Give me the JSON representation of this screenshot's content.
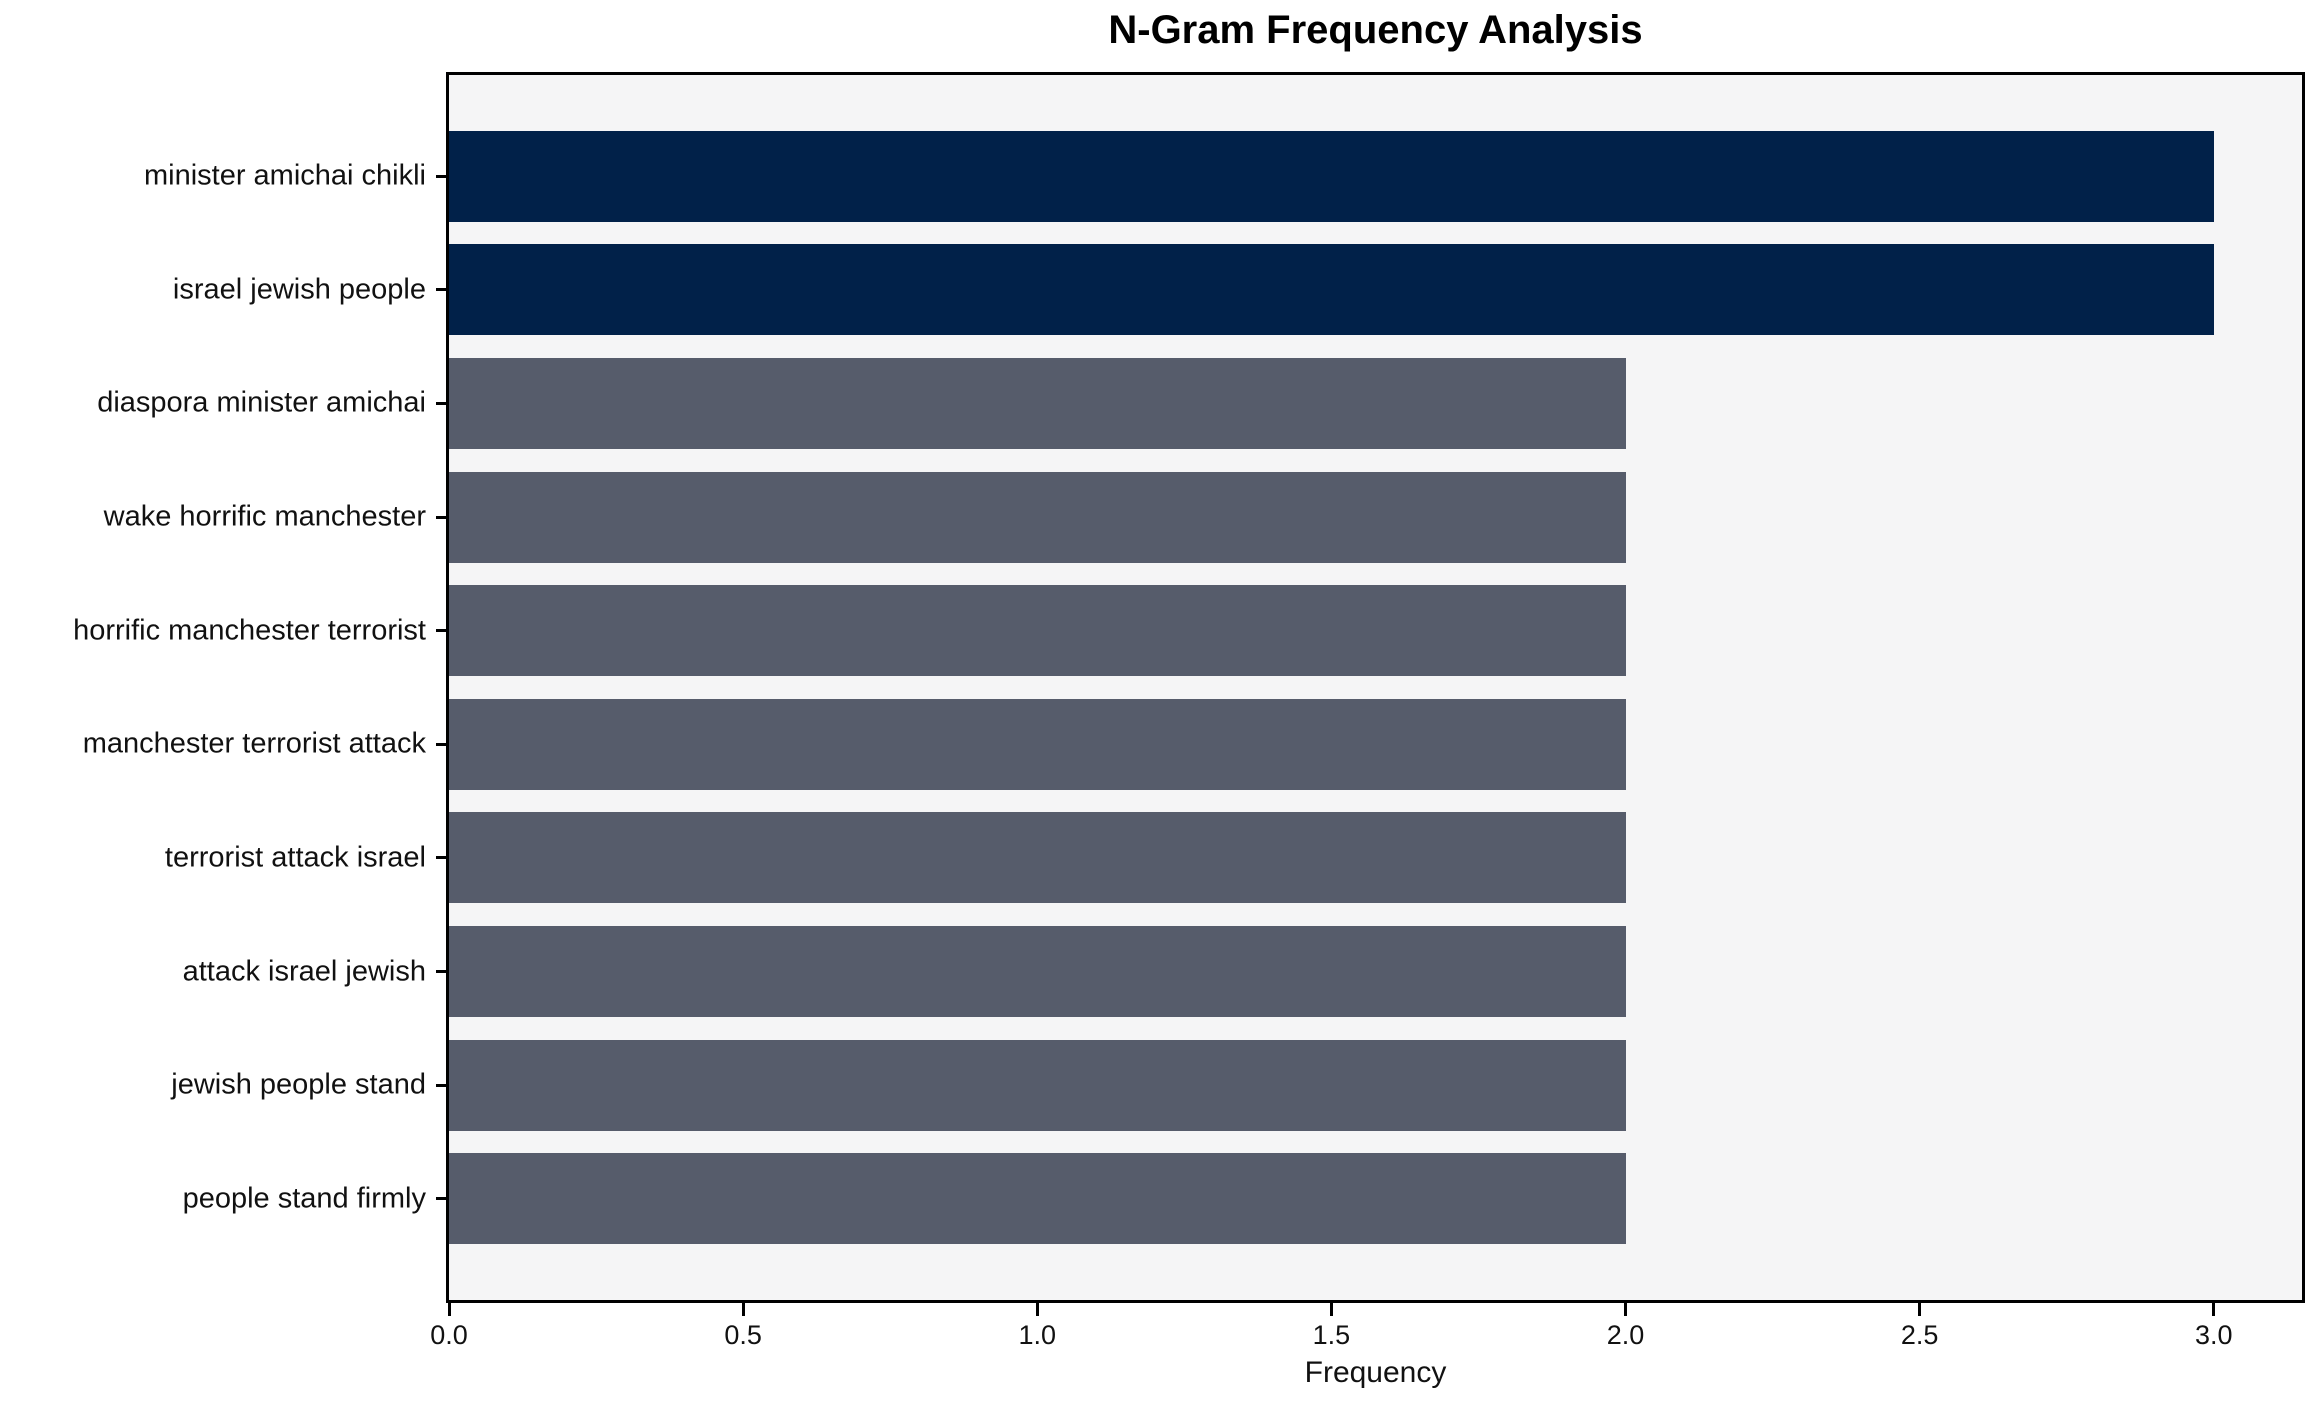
{
  "chart_data": {
    "type": "bar",
    "orientation": "horizontal",
    "title": "N-Gram Frequency Analysis",
    "xlabel": "Frequency",
    "ylabel": "",
    "categories": [
      "minister amichai chikli",
      "israel jewish people",
      "diaspora minister amichai",
      "wake horrific manchester",
      "horrific manchester terrorist",
      "manchester terrorist attack",
      "terrorist attack israel",
      "attack israel jewish",
      "jewish people stand",
      "people stand firmly"
    ],
    "values": [
      3,
      3,
      2,
      2,
      2,
      2,
      2,
      2,
      2,
      2
    ],
    "xlim": [
      0,
      3.15
    ],
    "xticks": [
      0,
      0.5,
      1,
      1.5,
      2,
      2.5,
      3
    ],
    "xtick_labels": [
      "0.0",
      "0.5",
      "1.0",
      "1.5",
      "2.0",
      "2.5",
      "3.0"
    ],
    "grid": false,
    "legend_position": "none",
    "colors": {
      "highlight_bar": "#012149",
      "default_bar": "#565c6b",
      "plot_background": "#f5f5f6",
      "figure_background": "#ffffff",
      "spine": "#000000",
      "text": "#111111"
    },
    "bar_colors": [
      "#012149",
      "#012149",
      "#565c6b",
      "#565c6b",
      "#565c6b",
      "#565c6b",
      "#565c6b",
      "#565c6b",
      "#565c6b",
      "#565c6b"
    ]
  }
}
